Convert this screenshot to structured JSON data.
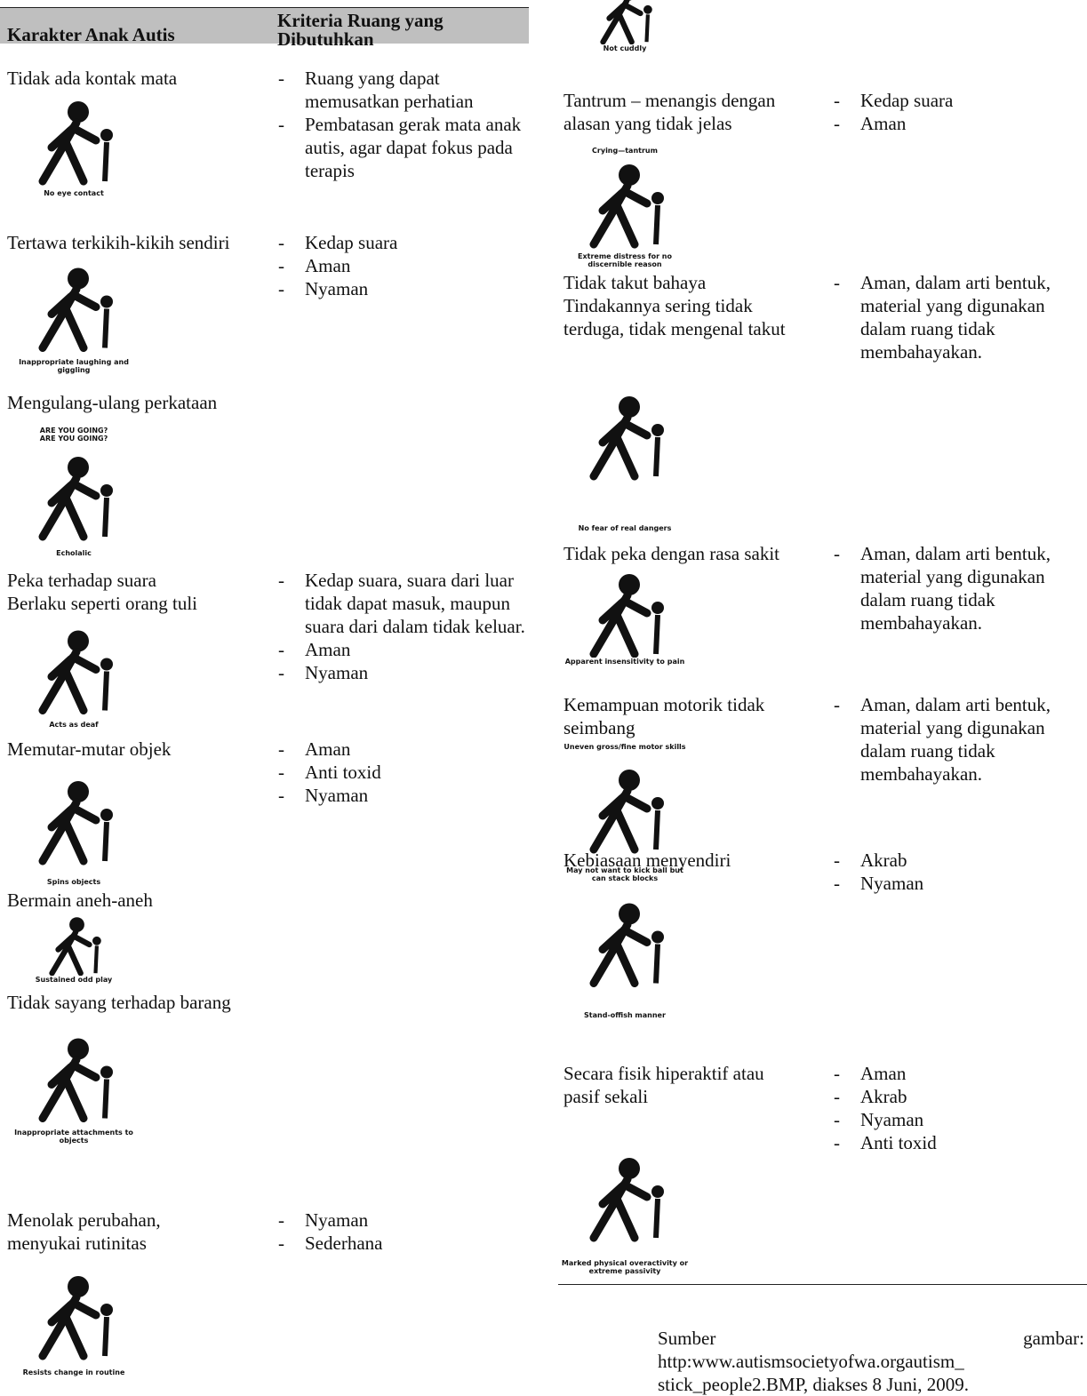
{
  "table": {
    "headers": [
      "Karakter Anak Autis",
      "Kriteria Ruang yang Dibutuhkan"
    ],
    "rows": [
      {
        "character": [
          "Tidak ada kontak mata"
        ],
        "captions": [
          "No eye contact"
        ],
        "criteria": [
          "Ruang yang dapat memusatkan perhatian",
          "Pembatasan gerak mata anak autis, agar dapat fokus pada terapis"
        ]
      },
      {
        "character": [
          "Tertawa terkikih-kikih sendiri"
        ],
        "captions": [
          "Inappropriate laughing and giggling"
        ],
        "criteria": [
          "Kedap suara",
          "Aman",
          "Nyaman"
        ]
      },
      {
        "character": [
          "Mengulang-ulang perkataan"
        ],
        "captions": [
          "ARE YOU GOING?",
          "ARE YOU GOING?",
          "Echolalic"
        ],
        "criteria": []
      },
      {
        "character": [
          "Peka terhadap suara",
          "Berlaku seperti orang tuli"
        ],
        "captions": [
          "Acts as deaf"
        ],
        "criteria": [
          "Kedap suara, suara dari luar tidak dapat masuk, maupun suara dari dalam tidak keluar.",
          "Aman",
          "Nyaman"
        ]
      },
      {
        "character": [
          "Memutar-mutar objek"
        ],
        "captions": [
          "Spins objects"
        ],
        "criteria": [
          "Aman",
          "Anti toxid",
          "Nyaman"
        ]
      },
      {
        "character": [
          "Bermain aneh-aneh"
        ],
        "captions": [
          "Sustained odd play"
        ],
        "criteria": []
      },
      {
        "character": [
          "Tidak sayang terhadap barang"
        ],
        "captions": [
          "Inappropriate attachments to objects"
        ],
        "criteria": []
      },
      {
        "character": [
          "Menolak perubahan,",
          "menyukai rutinitas"
        ],
        "captions": [
          "Resists change in routine"
        ],
        "criteria": [
          "Nyaman",
          "Sederhana"
        ]
      },
      {
        "character": [],
        "captions": [
          "Not cuddly"
        ],
        "criteria": []
      },
      {
        "character": [
          "Tantrum – menangis dengan",
          "alasan yang tidak jelas"
        ],
        "captions": [
          "Crying—tantrum",
          "Extreme distress for no discernible reason"
        ],
        "criteria": [
          "Kedap suara",
          "Aman"
        ]
      },
      {
        "character": [
          "Tidak takut bahaya",
          "Tindakannya sering tidak",
          "terduga, tidak mengenal takut"
        ],
        "captions": [
          "No fear of real dangers"
        ],
        "criteria": [
          "Aman, dalam arti bentuk, material yang digunakan dalam ruang tidak membahayakan."
        ]
      },
      {
        "character": [
          "Tidak peka dengan rasa sakit"
        ],
        "captions": [
          "Apparent insensitivity to pain"
        ],
        "criteria": [
          "Aman, dalam arti bentuk, material yang digunakan dalam ruang tidak membahayakan."
        ]
      },
      {
        "character": [
          "Kemampuan motorik tidak",
          "seimbang"
        ],
        "captions": [
          "Uneven gross/fine motor skills",
          "May not want to kick ball but can stack blocks"
        ],
        "criteria": [
          "Aman, dalam arti bentuk, material yang digunakan dalam ruang tidak membahayakan."
        ]
      },
      {
        "character": [
          "Kebiasaan  menyendiri"
        ],
        "captions": [
          "Stand-offish manner"
        ],
        "criteria": [
          "Akrab",
          "Nyaman"
        ]
      },
      {
        "character": [
          "Secara fisik hiperaktif atau",
          "pasif sekali"
        ],
        "captions": [
          "Marked physical overactivity or extreme passivity"
        ],
        "criteria": [
          "Aman",
          "Akrab",
          "Nyaman",
          "Anti toxid"
        ]
      }
    ]
  },
  "source": "Sumber gambar: http:www.autismsocietyofwa.orgautism_ stick_people2.BMP, diakses 8 Juni, 2009."
}
